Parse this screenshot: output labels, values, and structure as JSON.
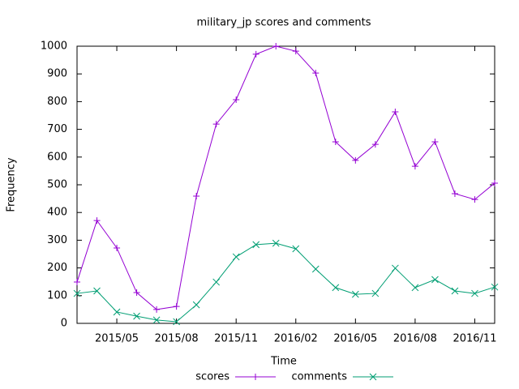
{
  "chart_data": {
    "type": "line",
    "title": "military_jp scores and comments",
    "x_label": "Time",
    "y_label": "Frequency",
    "x": [
      "2015/03",
      "2015/04",
      "2015/05",
      "2015/06",
      "2015/07",
      "2015/08",
      "2015/09",
      "2015/10",
      "2015/11",
      "2015/12",
      "2016/01",
      "2016/02",
      "2016/03",
      "2016/04",
      "2016/05",
      "2016/06",
      "2016/07",
      "2016/08",
      "2016/09",
      "2016/10",
      "2016/11",
      "2016/12"
    ],
    "series": [
      {
        "name": "scores",
        "color": "#9400d3",
        "marker": "plus",
        "values": [
          149,
          371,
          272,
          111,
          50,
          61,
          459,
          719,
          807,
          971,
          1000,
          982,
          903,
          655,
          588,
          646,
          763,
          567,
          655,
          468,
          447,
          506
        ]
      },
      {
        "name": "comments",
        "color": "#009e73",
        "marker": "cross",
        "values": [
          108,
          117,
          41,
          26,
          12,
          6,
          67,
          149,
          240,
          284,
          289,
          269,
          196,
          129,
          105,
          108,
          199,
          129,
          158,
          117,
          108,
          131
        ]
      }
    ],
    "xlim": [
      "2015/03",
      "2016/12"
    ],
    "xticks": [
      "2015/05",
      "2015/08",
      "2015/11",
      "2016/02",
      "2016/05",
      "2016/08",
      "2016/11"
    ],
    "ylim": [
      0,
      1000
    ],
    "yticks": [
      0,
      100,
      200,
      300,
      400,
      500,
      600,
      700,
      800,
      900,
      1000
    ],
    "legend": "bottom",
    "grid": false
  }
}
